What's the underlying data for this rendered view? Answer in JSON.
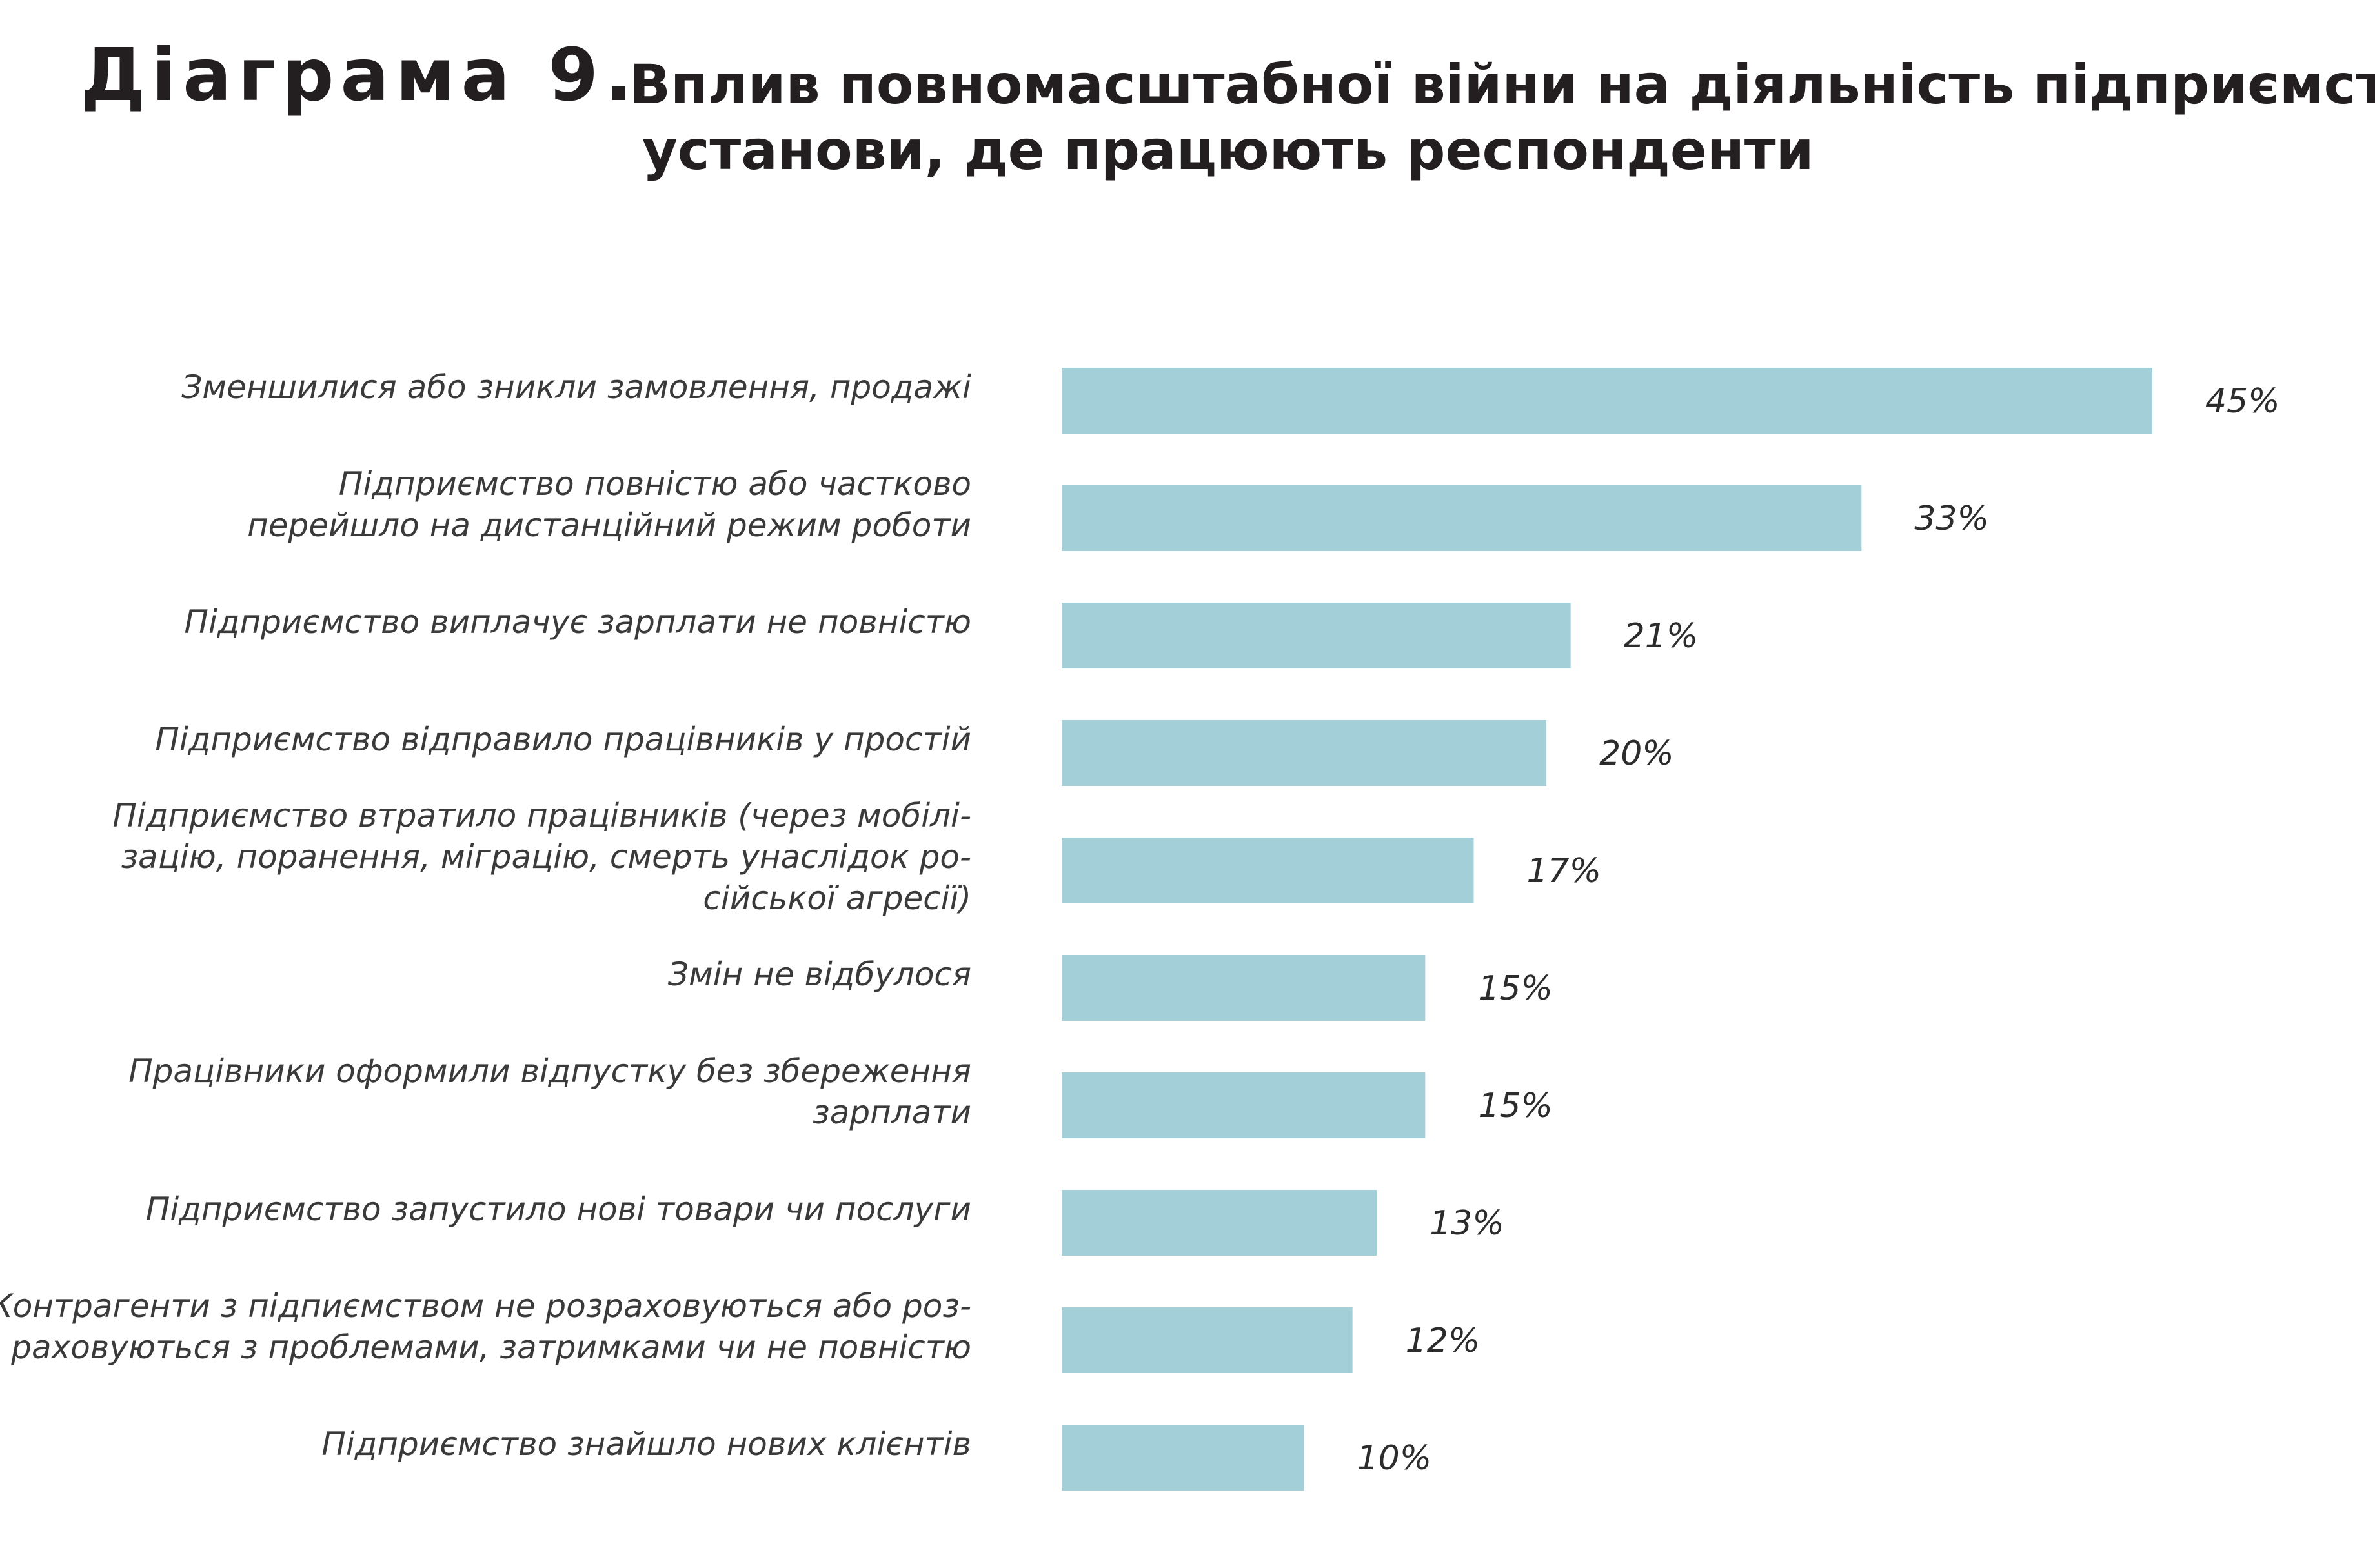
{
  "title": {
    "prefix": "Діаграма 9.",
    "line1": "Вплив повномасштабної війни на діяльність підприємства/",
    "line2": "установи, де працюють респонденти"
  },
  "colors": {
    "bar": "#a2cfd8",
    "text": "#231f20"
  },
  "chart_data": {
    "type": "bar",
    "orientation": "horizontal",
    "value_suffix": "%",
    "xlim": [
      0,
      45
    ],
    "grid": false,
    "legend": "none",
    "categories": [
      [
        "Зменшилися або зникли замовлення, продажі"
      ],
      [
        "Підприємство повністю або частково",
        "перейшло на дистанційний режим роботи"
      ],
      [
        "Підприємство виплачує зарплати не повністю"
      ],
      [
        "Підприємство відправило працівників у простій"
      ],
      [
        "Підприємство втратило працівників (через мобілі-",
        "зацію, поранення, міграцію, смерть унаслідок ро-",
        "сійської агресії)"
      ],
      [
        "Змін не відбулося"
      ],
      [
        "Працівники оформили відпустку без збереження",
        "зарплати"
      ],
      [
        "Підприємство запустило нові товари чи послуги"
      ],
      [
        "Контрагенти з підпиємством не розраховуються або роз-",
        "раховуються з проблемами, затримками чи не повністю"
      ],
      [
        "Підприємство знайшло нових клієнтів"
      ]
    ],
    "values": [
      45,
      33,
      21,
      20,
      17,
      15,
      15,
      13,
      12,
      10
    ],
    "value_labels": [
      "45%",
      "33%",
      "21%",
      "20%",
      "17%",
      "15%",
      "15%",
      "13%",
      "12%",
      "10%"
    ]
  }
}
